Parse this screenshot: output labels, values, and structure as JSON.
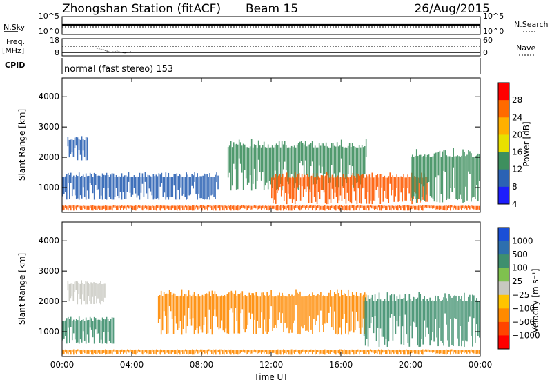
{
  "header": {
    "station": "Zhongshan Station (fitACF)",
    "beam": "Beam 15",
    "date": "26/Aug/2015"
  },
  "strip": {
    "nsky_label": "N.Sky",
    "nsearch_label": "N.Search",
    "freq_label": "Freq.",
    "freq_unit": "[MHz]",
    "nave_label": "Nave",
    "cpid_label": "CPID",
    "cpid_text": "normal (fast stereo) 153",
    "noise_left_ticks": [
      "10^5",
      "10^0"
    ],
    "noise_right_ticks": [
      "10^5",
      "10^0"
    ],
    "freq_left_ticks": [
      "18",
      "8"
    ],
    "nave_right_ticks": [
      "60",
      "0"
    ]
  },
  "chart_data": [
    {
      "type": "heatmap",
      "panel": "power",
      "xlabel": "",
      "ylabel": "Slant Range [km]",
      "x_ticks": [
        "00:00",
        "04:00",
        "08:00",
        "12:00",
        "16:00",
        "20:00",
        "00:00"
      ],
      "xlim_hours": [
        0,
        24
      ],
      "y_ticks": [
        1000,
        2000,
        3000,
        4000
      ],
      "ylim_km": [
        180,
        4620
      ],
      "colorbar_label": "Power [dB]",
      "colorbar_ticks": [
        "28",
        "24",
        "20",
        "16",
        "12",
        "8",
        "4"
      ],
      "colorbar_colors": [
        "#ff0000",
        "#ff6a00",
        "#ffb000",
        "#e8e000",
        "#3e8f5e",
        "#2b62b4",
        "#1d1dfc"
      ],
      "echo_regions": [
        {
          "t_start": 0.0,
          "t_end": 24.0,
          "r_min": 240,
          "r_max": 420,
          "level": "high"
        },
        {
          "t_start": 0.3,
          "t_end": 1.5,
          "r_min": 1900,
          "r_max": 2700,
          "level": "low"
        },
        {
          "t_start": 0.0,
          "t_end": 9.0,
          "r_min": 600,
          "r_max": 1500,
          "level": "low"
        },
        {
          "t_start": 9.5,
          "t_end": 17.5,
          "r_min": 900,
          "r_max": 2600,
          "level": "mid"
        },
        {
          "t_start": 12.0,
          "t_end": 21.0,
          "r_min": 450,
          "r_max": 1500,
          "level": "high"
        },
        {
          "t_start": 20.0,
          "t_end": 24.0,
          "r_min": 500,
          "r_max": 2300,
          "level": "mid"
        }
      ]
    },
    {
      "type": "heatmap",
      "panel": "velocity",
      "xlabel": "Time UT",
      "ylabel": "Slant Range [km]",
      "x_ticks": [
        "00:00",
        "04:00",
        "08:00",
        "12:00",
        "16:00",
        "20:00",
        "00:00"
      ],
      "xlim_hours": [
        0,
        24
      ],
      "y_ticks": [
        1000,
        2000,
        3000,
        4000
      ],
      "ylim_km": [
        180,
        4620
      ],
      "colorbar_label": "Velocity [m s⁻¹]",
      "colorbar_ticks": [
        "1000",
        "500",
        "100",
        "25",
        "−25",
        "−100",
        "−500",
        "−1000"
      ],
      "colorbar_colors": [
        "#1a4fd6",
        "#2d6fae",
        "#3e8f6e",
        "#7fc14e",
        "#c8c8c0",
        "#ffc400",
        "#ff8a00",
        "#ff4400",
        "#ff0000"
      ],
      "echo_regions": [
        {
          "t_start": 0.0,
          "t_end": 24.0,
          "r_min": 240,
          "r_max": 420,
          "level": "orange"
        },
        {
          "t_start": 0.3,
          "t_end": 2.5,
          "r_min": 1900,
          "r_max": 2700,
          "level": "grey"
        },
        {
          "t_start": 0.0,
          "t_end": 3.0,
          "r_min": 600,
          "r_max": 1500,
          "level": "green"
        },
        {
          "t_start": 5.5,
          "t_end": 17.5,
          "r_min": 900,
          "r_max": 2400,
          "level": "orange"
        },
        {
          "t_start": 17.3,
          "t_end": 24.0,
          "r_min": 500,
          "r_max": 2300,
          "level": "green"
        }
      ]
    }
  ]
}
